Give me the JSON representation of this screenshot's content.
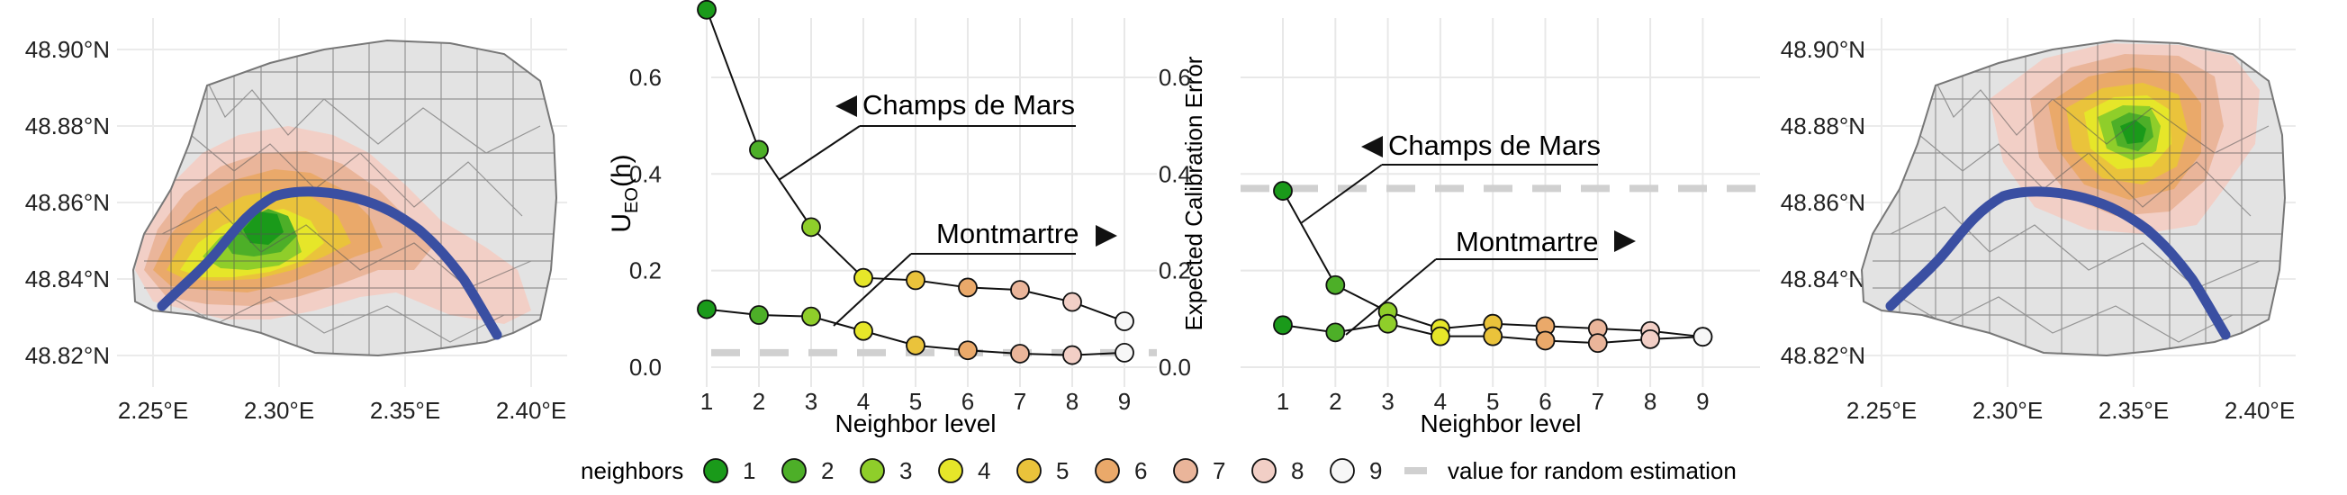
{
  "neighbor_colors": [
    "#1a9a1a",
    "#4daf28",
    "#8fce2a",
    "#e6e629",
    "#eac33b",
    "#eaa96a",
    "#eab59a",
    "#f2cfc6",
    "#f7f7f7"
  ],
  "river_color": "#3a4fa2",
  "random_line_color": "#d0d0d0",
  "maps": [
    {
      "id": "map-left",
      "y_ticks": [
        "48.90°N",
        "48.88°N",
        "48.86°N",
        "48.84°N",
        "48.82°N"
      ],
      "x_ticks": [
        "2.25°E",
        "2.30°E",
        "2.35°E",
        "2.40°E"
      ],
      "focus": "Champs de Mars"
    },
    {
      "id": "map-right",
      "y_ticks": [
        "48.90°N",
        "48.88°N",
        "48.86°N",
        "48.84°N",
        "48.82°N"
      ],
      "x_ticks": [
        "2.25°E",
        "2.30°E",
        "2.35°E",
        "2.40°E"
      ],
      "focus": "Montmartre"
    }
  ],
  "chart_data": [
    {
      "type": "line",
      "id": "ueo-chart",
      "xlabel": "Neighbor level",
      "ylabel": "U_EO(h)",
      "x": [
        1,
        2,
        3,
        4,
        5,
        6,
        7,
        8,
        9
      ],
      "ylim": [
        0,
        0.75
      ],
      "y_ticks": [
        0.0,
        0.2,
        0.4,
        0.6
      ],
      "grid": true,
      "random_estimation_value": 0.03,
      "series": [
        {
          "name": "Champs de Mars",
          "values": [
            0.74,
            0.45,
            0.29,
            0.185,
            0.18,
            0.165,
            0.16,
            0.135,
            0.095
          ]
        },
        {
          "name": "Montmartre",
          "values": [
            0.12,
            0.108,
            0.105,
            0.075,
            0.045,
            0.035,
            0.028,
            0.025,
            0.03
          ]
        }
      ],
      "annotations": [
        {
          "text": "Champs de Mars",
          "arrow": "left"
        },
        {
          "text": "Montmartre",
          "arrow": "right"
        }
      ]
    },
    {
      "type": "line",
      "id": "ece-chart",
      "xlabel": "Neighbor level",
      "ylabel": "Expected Calibration Error",
      "x": [
        1,
        2,
        3,
        4,
        5,
        6,
        7,
        8,
        9
      ],
      "ylim": [
        0,
        0.75
      ],
      "y_ticks": [
        0.0,
        0.2,
        0.4,
        0.6
      ],
      "grid": true,
      "random_estimation_value": 0.37,
      "series": [
        {
          "name": "Champs de Mars",
          "values": [
            0.365,
            0.17,
            0.115,
            0.08,
            0.09,
            0.085,
            0.08,
            0.075,
            0.063
          ]
        },
        {
          "name": "Montmartre",
          "values": [
            0.087,
            0.072,
            0.09,
            0.064,
            0.064,
            0.055,
            0.05,
            0.058,
            0.063
          ]
        }
      ],
      "annotations": [
        {
          "text": "Champs de Mars",
          "arrow": "left"
        },
        {
          "text": "Montmartre",
          "arrow": "right"
        }
      ]
    }
  ],
  "legend": {
    "title": "neighbors",
    "items": [
      "1",
      "2",
      "3",
      "4",
      "5",
      "6",
      "7",
      "8",
      "9"
    ],
    "random_label": "value for random estimation"
  }
}
